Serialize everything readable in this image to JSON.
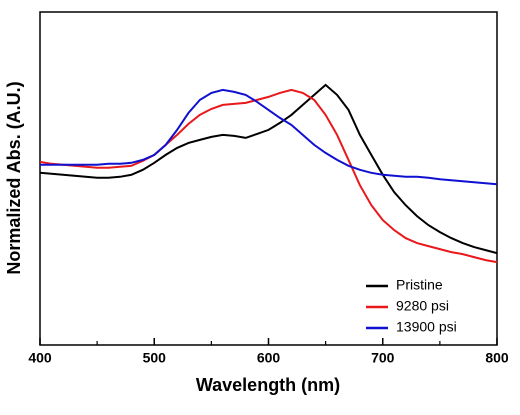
{
  "chart_data": {
    "type": "line",
    "xlabel": "Wavelength (nm)",
    "ylabel": "Normalized Abs. (A.U.)",
    "x": [
      400,
      410,
      420,
      430,
      440,
      450,
      460,
      470,
      480,
      490,
      500,
      510,
      520,
      530,
      540,
      550,
      560,
      570,
      580,
      590,
      600,
      610,
      620,
      630,
      640,
      650,
      660,
      670,
      680,
      690,
      700,
      710,
      720,
      730,
      740,
      750,
      760,
      770,
      780,
      790,
      800
    ],
    "series": [
      {
        "name": "Pristine",
        "color": "#000000",
        "values": [
          0.517,
          0.514,
          0.511,
          0.508,
          0.505,
          0.502,
          0.502,
          0.505,
          0.511,
          0.526,
          0.547,
          0.571,
          0.592,
          0.607,
          0.616,
          0.625,
          0.631,
          0.628,
          0.622,
          0.634,
          0.646,
          0.667,
          0.691,
          0.721,
          0.751,
          0.781,
          0.751,
          0.706,
          0.631,
          0.571,
          0.511,
          0.459,
          0.42,
          0.387,
          0.36,
          0.339,
          0.321,
          0.306,
          0.294,
          0.285,
          0.276
        ]
      },
      {
        "name": "9280 psi",
        "color": "#e8191c",
        "values": [
          0.55,
          0.544,
          0.541,
          0.538,
          0.535,
          0.532,
          0.532,
          0.535,
          0.538,
          0.553,
          0.571,
          0.601,
          0.631,
          0.664,
          0.691,
          0.709,
          0.721,
          0.724,
          0.727,
          0.736,
          0.745,
          0.757,
          0.766,
          0.757,
          0.736,
          0.691,
          0.631,
          0.556,
          0.48,
          0.42,
          0.375,
          0.345,
          0.321,
          0.306,
          0.297,
          0.288,
          0.279,
          0.273,
          0.264,
          0.255,
          0.249
        ]
      },
      {
        "name": "13900 psi",
        "color": "#1010d0",
        "values": [
          0.541,
          0.541,
          0.541,
          0.541,
          0.541,
          0.541,
          0.544,
          0.544,
          0.547,
          0.556,
          0.571,
          0.601,
          0.646,
          0.697,
          0.736,
          0.757,
          0.766,
          0.76,
          0.751,
          0.73,
          0.706,
          0.682,
          0.661,
          0.631,
          0.601,
          0.577,
          0.556,
          0.538,
          0.526,
          0.517,
          0.511,
          0.508,
          0.505,
          0.505,
          0.502,
          0.498,
          0.495,
          0.492,
          0.489,
          0.486,
          0.483
        ]
      }
    ],
    "xlim": [
      400,
      800
    ],
    "xticks": [
      400,
      500,
      600,
      700,
      800
    ],
    "xminorticks": [
      450,
      550,
      650,
      750
    ],
    "ylim": [
      0,
      1
    ],
    "legend": "lower right"
  }
}
